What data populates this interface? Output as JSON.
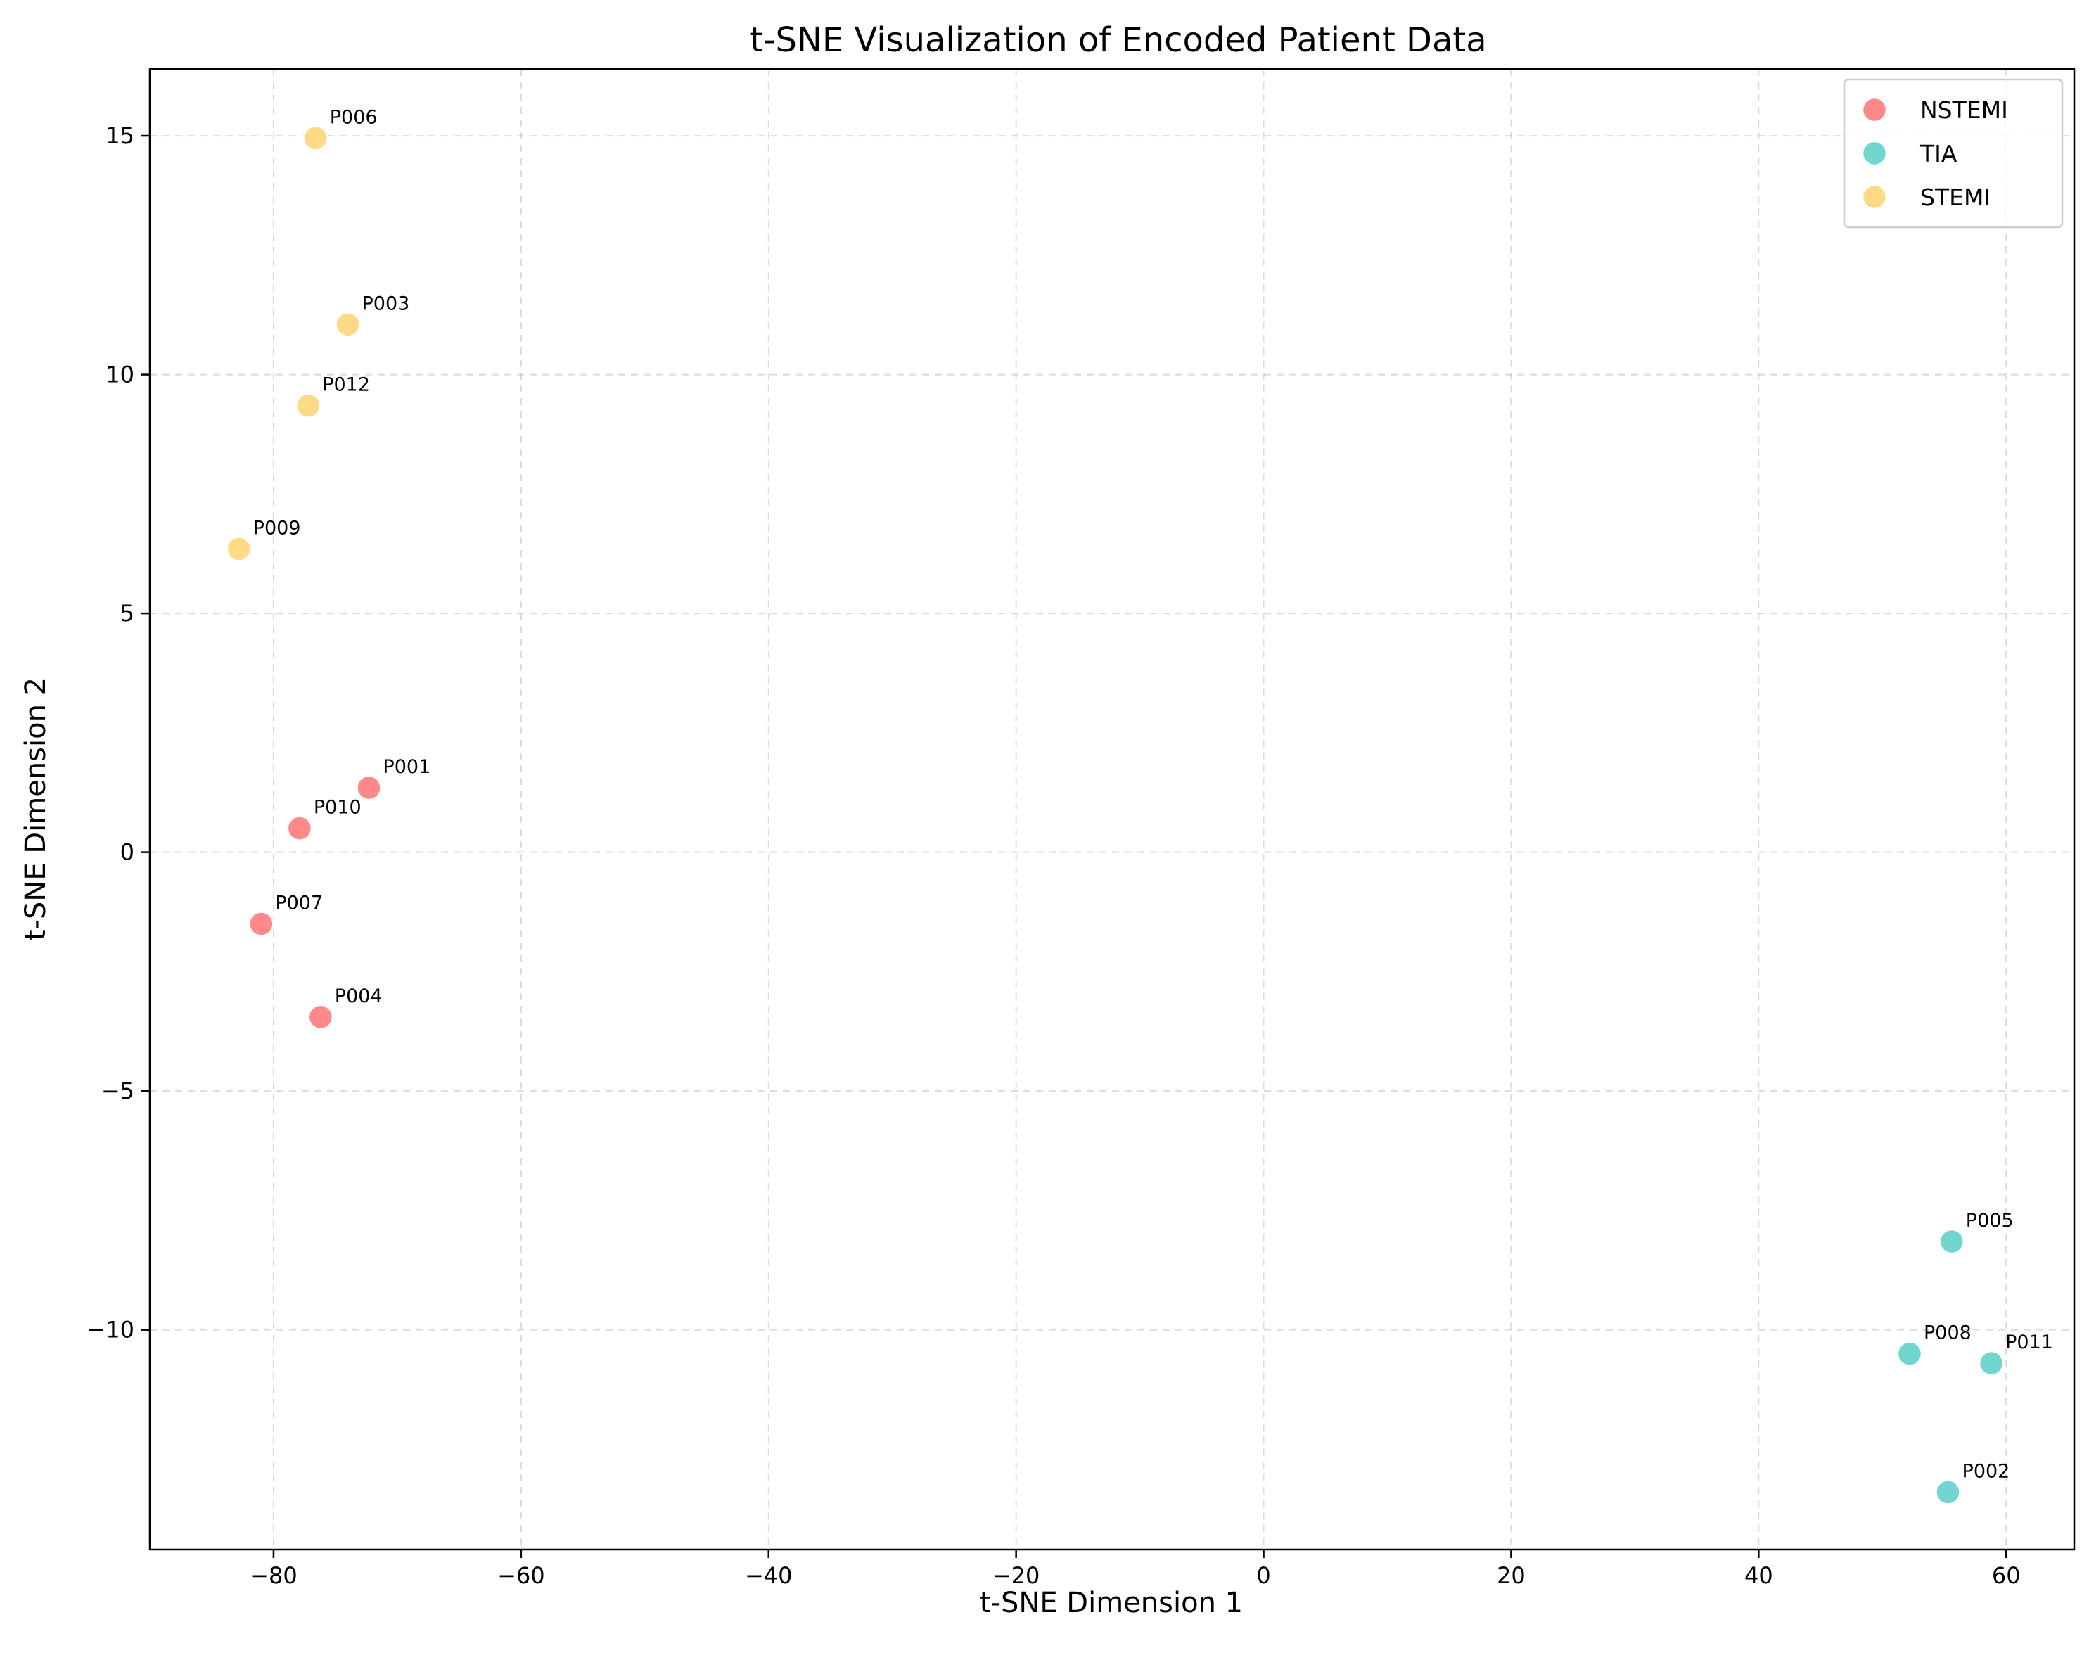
{
  "chart_data": {
    "type": "scatter",
    "title": "t-SNE Visualization of Encoded Patient Data",
    "xlabel": "t-SNE Dimension 1",
    "ylabel": "t-SNE Dimension 2",
    "xlim": [
      -90,
      65.5
    ],
    "ylim": [
      -14.6,
      16.4
    ],
    "xticks": [
      -80,
      -60,
      -40,
      -20,
      0,
      20,
      40,
      60
    ],
    "yticks": [
      -10,
      -5,
      0,
      5,
      10,
      15
    ],
    "xtick_labels": [
      "−80",
      "−60",
      "−40",
      "−20",
      "0",
      "20",
      "40",
      "60"
    ],
    "ytick_labels": [
      "−10",
      "−5",
      "0",
      "5",
      "10",
      "15"
    ],
    "grid": true,
    "legend_position": "top-right",
    "series": [
      {
        "name": "NSTEMI",
        "color": "#ff6b6b",
        "points": [
          {
            "id": "P001",
            "x": -72.3,
            "y": 1.35
          },
          {
            "id": "P004",
            "x": -76.2,
            "y": -3.45
          },
          {
            "id": "P007",
            "x": -81.0,
            "y": -1.5
          },
          {
            "id": "P010",
            "x": -77.9,
            "y": 0.5
          }
        ]
      },
      {
        "name": "TIA",
        "color": "#4ecdc4",
        "points": [
          {
            "id": "P002",
            "x": 55.3,
            "y": -13.4
          },
          {
            "id": "P005",
            "x": 55.6,
            "y": -8.15
          },
          {
            "id": "P008",
            "x": 52.2,
            "y": -10.5
          },
          {
            "id": "P011",
            "x": 58.8,
            "y": -10.7
          }
        ]
      },
      {
        "name": "STEMI",
        "color": "#ffd166",
        "points": [
          {
            "id": "P003",
            "x": -74.0,
            "y": 11.05
          },
          {
            "id": "P006",
            "x": -76.6,
            "y": 14.95
          },
          {
            "id": "P009",
            "x": -82.8,
            "y": 6.35
          },
          {
            "id": "P012",
            "x": -77.2,
            "y": 9.35
          }
        ]
      }
    ]
  }
}
